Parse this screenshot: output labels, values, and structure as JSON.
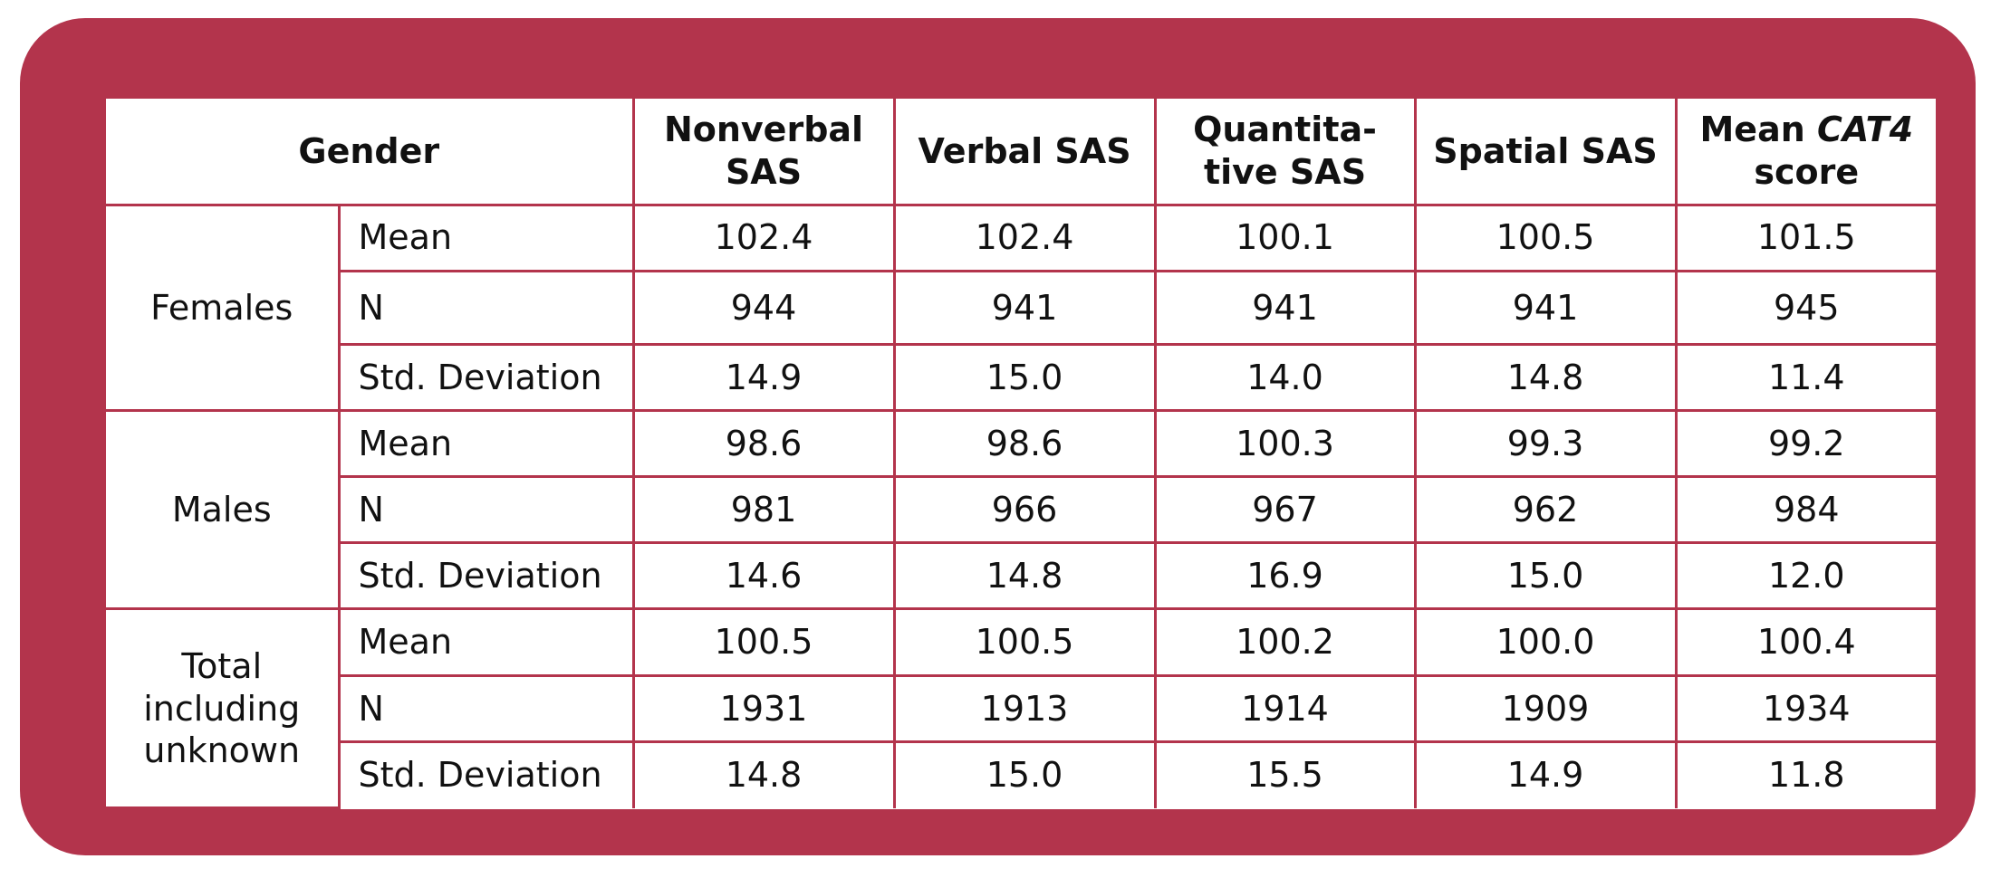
{
  "table": {
    "headers": {
      "gender": "Gender",
      "nonverbal": "Nonverbal SAS",
      "verbal": "Verbal SAS",
      "quantitative": "Quantita-tive SAS",
      "spatial": "Spatial SAS",
      "mean_cat4_prefix": "Mean",
      "mean_cat4_em": "CAT4",
      "mean_cat4_suffix": "score"
    },
    "groups": [
      {
        "name": "Females",
        "rows": [
          {
            "stat": "Mean",
            "values": [
              "102.4",
              "102.4",
              "100.1",
              "100.5",
              "101.5"
            ]
          },
          {
            "stat": "N",
            "values": [
              "944",
              "941",
              "941",
              "941",
              "945"
            ]
          },
          {
            "stat": "Std. Deviation",
            "values": [
              "14.9",
              "15.0",
              "14.0",
              "14.8",
              "11.4"
            ]
          }
        ]
      },
      {
        "name": "Males",
        "rows": [
          {
            "stat": "Mean",
            "values": [
              "98.6",
              "98.6",
              "100.3",
              "99.3",
              "99.2"
            ]
          },
          {
            "stat": "N",
            "values": [
              "981",
              "966",
              "967",
              "962",
              "984"
            ]
          },
          {
            "stat": "Std. Deviation",
            "values": [
              "14.6",
              "14.8",
              "16.9",
              "15.0",
              "12.0"
            ]
          }
        ]
      },
      {
        "name": "Total including unknown",
        "rows": [
          {
            "stat": "Mean",
            "values": [
              "100.5",
              "100.5",
              "100.2",
              "100.0",
              "100.4"
            ]
          },
          {
            "stat": "N",
            "values": [
              "1931",
              "1913",
              "1914",
              "1909",
              "1934"
            ]
          },
          {
            "stat": "Std. Deviation",
            "values": [
              "14.8",
              "15.0",
              "15.5",
              "14.9",
              "11.8"
            ]
          }
        ]
      }
    ],
    "colors": {
      "frame": "#b3344c",
      "panel": "#ffffff",
      "text": "#111111"
    }
  }
}
